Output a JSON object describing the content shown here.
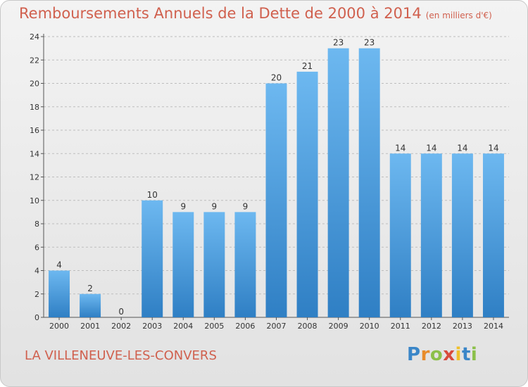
{
  "header": {
    "title": "Remboursements Annuels de la Dette de 2000 à 2014",
    "subtitle": "(en milliers d'€)"
  },
  "footer": {
    "commune": "LA VILLENEUVE-LES-CONVERS",
    "logo_letters": [
      "P",
      "r",
      "o",
      "x",
      "i",
      "t",
      "i"
    ]
  },
  "colors": {
    "bar_top": "#6db8f0",
    "bar_bottom": "#2f7fc4",
    "title": "#d0604e",
    "grid": "#bdbdbd"
  },
  "chart_data": {
    "type": "bar",
    "title": "Remboursements Annuels de la Dette de 2000 à 2014",
    "categories": [
      "2000",
      "2001",
      "2002",
      "2003",
      "2004",
      "2005",
      "2006",
      "2007",
      "2008",
      "2009",
      "2010",
      "2011",
      "2012",
      "2013",
      "2014"
    ],
    "values": [
      4,
      2,
      0,
      10,
      9,
      9,
      9,
      20,
      21,
      23,
      23,
      14,
      14,
      14,
      14
    ],
    "ylim": [
      0,
      24
    ],
    "yticks": [
      0,
      2,
      4,
      6,
      8,
      10,
      12,
      14,
      16,
      18,
      20,
      22,
      24
    ],
    "grid": true
  }
}
